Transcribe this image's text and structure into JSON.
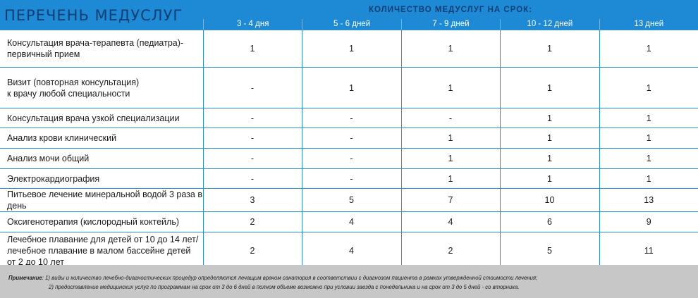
{
  "header": {
    "title": "ПЕРЕЧЕНЬ МЕДУСЛУГ",
    "subtitle": "КОЛИЧЕСТВО МЕДУСЛУГ НА СРОК:",
    "periods": [
      "3 - 4 дня",
      "5 - 6 дней",
      "7 - 9 дней",
      "10 - 12 дней",
      "13 дней"
    ]
  },
  "rows": [
    {
      "name": [
        "Консультация  врача-терапевта (педиатра)-",
        "первичный прием"
      ],
      "values": [
        "1",
        "1",
        "1",
        "1",
        "1"
      ]
    },
    {
      "name": [
        "Визит (повторная консультация)",
        "к врачу любой специальности"
      ],
      "values": [
        "-",
        "1",
        "1",
        "1",
        "1"
      ]
    },
    {
      "name": [
        "Консультация врача узкой  специализации"
      ],
      "values": [
        "-",
        "-",
        "-",
        "1",
        "1"
      ]
    },
    {
      "name": [
        "Анализ крови клинический"
      ],
      "values": [
        "-",
        "-",
        "1",
        "1",
        "1"
      ]
    },
    {
      "name": [
        "Анализ мочи общий"
      ],
      "values": [
        "-",
        "-",
        "1",
        "1",
        "1"
      ]
    },
    {
      "name": [
        "Электрокардиография"
      ],
      "values": [
        "-",
        "-",
        "1",
        "1",
        "1"
      ]
    },
    {
      "name": [
        "Питьевое лечение минеральной водой 3 раза в день"
      ],
      "values": [
        "3",
        "5",
        "7",
        "10",
        "13"
      ]
    },
    {
      "name": [
        "Оксигенотерапия (кислородный коктейль)"
      ],
      "values": [
        "2",
        "4",
        "4",
        "6",
        "9"
      ]
    },
    {
      "name": [
        "Лечебное плавание для детей от 10 до 14 лет/",
        "лечебное плавание в малом бассейне детей",
        "от 2 до 10 лет"
      ],
      "values": [
        "2",
        "4",
        "2",
        "5",
        "11"
      ]
    }
  ],
  "note": {
    "label": "Примечание",
    "line1": ": 1) виды и количество лечебно-диагностических процедур определяются лечащим врачом санатория в соответствии с диагнозом пациента в рамках утвержденной стоимости лечения;",
    "line2": "2) предоставление медицинских услуг по программам  на срок от 3 до 6 дней в полном объеме возможно при условии заезда с понедельника  и на срок  от 3 до 5 дней - со вторника."
  }
}
